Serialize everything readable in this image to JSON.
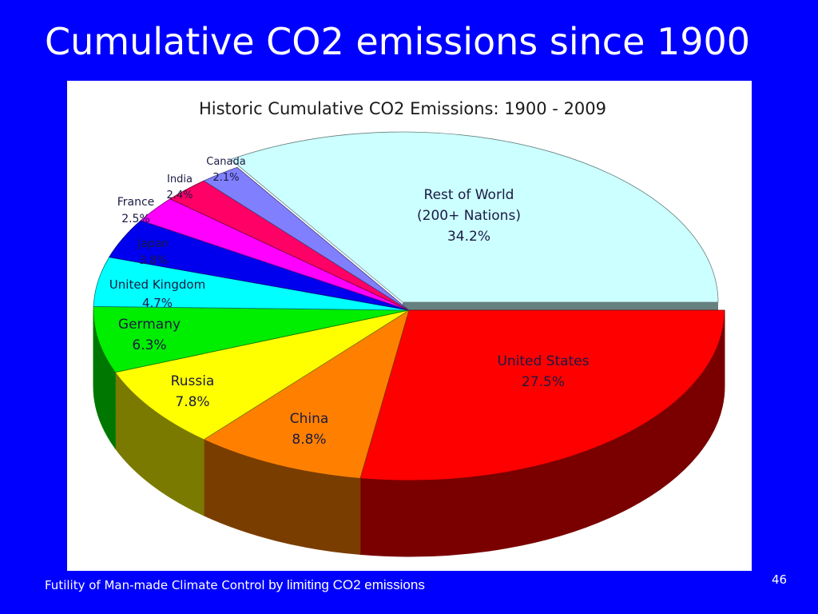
{
  "slide": {
    "title": "Cumulative CO2 emissions since 1900",
    "footer_a": "Futility of Man-made Climate Control",
    "footer_b": " by limiting CO2 emissions",
    "page_number": "46"
  },
  "colors": {
    "background": "#0000ff",
    "text": "#ffffff"
  },
  "chart_data": {
    "type": "pie",
    "title": "Historic Cumulative CO2 Emissions: 1900 - 2009",
    "slices": [
      {
        "name": "United States",
        "label_lines": [
          "United States",
          "27.5%"
        ],
        "value": 27.5,
        "color": "#ff0000",
        "side": "#7a0000"
      },
      {
        "name": "China",
        "label_lines": [
          "China",
          "8.8%"
        ],
        "value": 8.8,
        "color": "#ff8000",
        "side": "#7a3d00"
      },
      {
        "name": "Russia",
        "label_lines": [
          "Russia",
          "7.8%"
        ],
        "value": 7.8,
        "color": "#ffff00",
        "side": "#7a7a00"
      },
      {
        "name": "Germany",
        "label_lines": [
          "Germany",
          "6.3%"
        ],
        "value": 6.3,
        "color": "#00ee00",
        "side": "#007700"
      },
      {
        "name": "United Kingdom",
        "label_lines": [
          "United Kingdom",
          "4.7%"
        ],
        "value": 4.7,
        "color": "#00ffff",
        "side": "#007a7a"
      },
      {
        "name": "Japan",
        "label_lines": [
          "Japan",
          "3.8%"
        ],
        "value": 3.8,
        "color": "#0000ee",
        "side": "#00007a"
      },
      {
        "name": "France",
        "label_lines": [
          "France",
          "2.5%"
        ],
        "value": 2.5,
        "color": "#ff00ff",
        "side": "#7a007a"
      },
      {
        "name": "India",
        "label_lines": [
          "India",
          "2.4%"
        ],
        "value": 2.4,
        "color": "#ff0066",
        "side": "#7a0033"
      },
      {
        "name": "Canada",
        "label_lines": [
          "Canada",
          "2.1%"
        ],
        "value": 2.1,
        "color": "#8080ff",
        "side": "#40407a"
      },
      {
        "name": "Rest of World",
        "label_lines": [
          "Rest of World",
          "(200+ Nations)",
          "34.2%"
        ],
        "value": 34.2,
        "color": "#ccffff",
        "side": "#668080"
      }
    ]
  }
}
